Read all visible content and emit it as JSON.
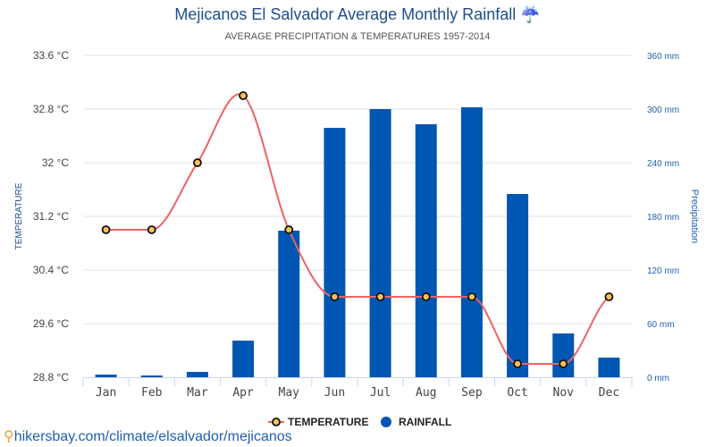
{
  "header": {
    "title": "Mejicanos El Salvador Average Monthly Rainfall",
    "title_icon": "umbrella-rain-icon",
    "subtitle": "AVERAGE PRECIPITATION & TEMPERATURES 1957-2014"
  },
  "footer": {
    "link": "hikersbay.com/climate/elsalvador/mejicanos",
    "icon": "map-pin-icon"
  },
  "colors": {
    "bar": "#0056b3",
    "line": "#f06262",
    "marker_fill": "#f7c25a",
    "marker_stroke": "#111111",
    "right_axis_text": "#1f5fb0"
  },
  "chart_data": {
    "type": "bar",
    "title": "Mejicanos El Salvador Average Monthly Rainfall",
    "subtitle": "AVERAGE PRECIPITATION & TEMPERATURES 1957-2014",
    "categories": [
      "Jan",
      "Feb",
      "Mar",
      "Apr",
      "May",
      "Jun",
      "Jul",
      "Aug",
      "Sep",
      "Oct",
      "Nov",
      "Dec"
    ],
    "series": [
      {
        "name": "TEMPERATURE",
        "type": "line",
        "axis": "left",
        "unit": "°C",
        "values": [
          31.0,
          31.0,
          32.0,
          33.0,
          31.0,
          30.0,
          30.0,
          30.0,
          30.0,
          29.0,
          29.0,
          30.0
        ]
      },
      {
        "name": "RAINFALL",
        "type": "bar",
        "axis": "right",
        "unit": "mm",
        "values": [
          3,
          2,
          6,
          41,
          164,
          279,
          300,
          283,
          302,
          205,
          49,
          22
        ]
      }
    ],
    "ylabel_left": "TEMPERATURE",
    "ylabel_right": "Precipitation",
    "ylim_left": [
      28.8,
      33.6
    ],
    "ylim_right": [
      0,
      360
    ],
    "yticks_left": [
      "28.8 °C",
      "29.6 °C",
      "30.4 °C",
      "31.2 °C",
      "32 °C",
      "32.8 °C",
      "33.6 °C"
    ],
    "yticks_right": [
      "0 mm",
      "60 mm",
      "120 mm",
      "180 mm",
      "240 mm",
      "300 mm",
      "360 mm"
    ],
    "grid": true,
    "legend": {
      "position": "bottom-center",
      "entries": [
        "TEMPERATURE",
        "RAINFALL"
      ]
    }
  }
}
